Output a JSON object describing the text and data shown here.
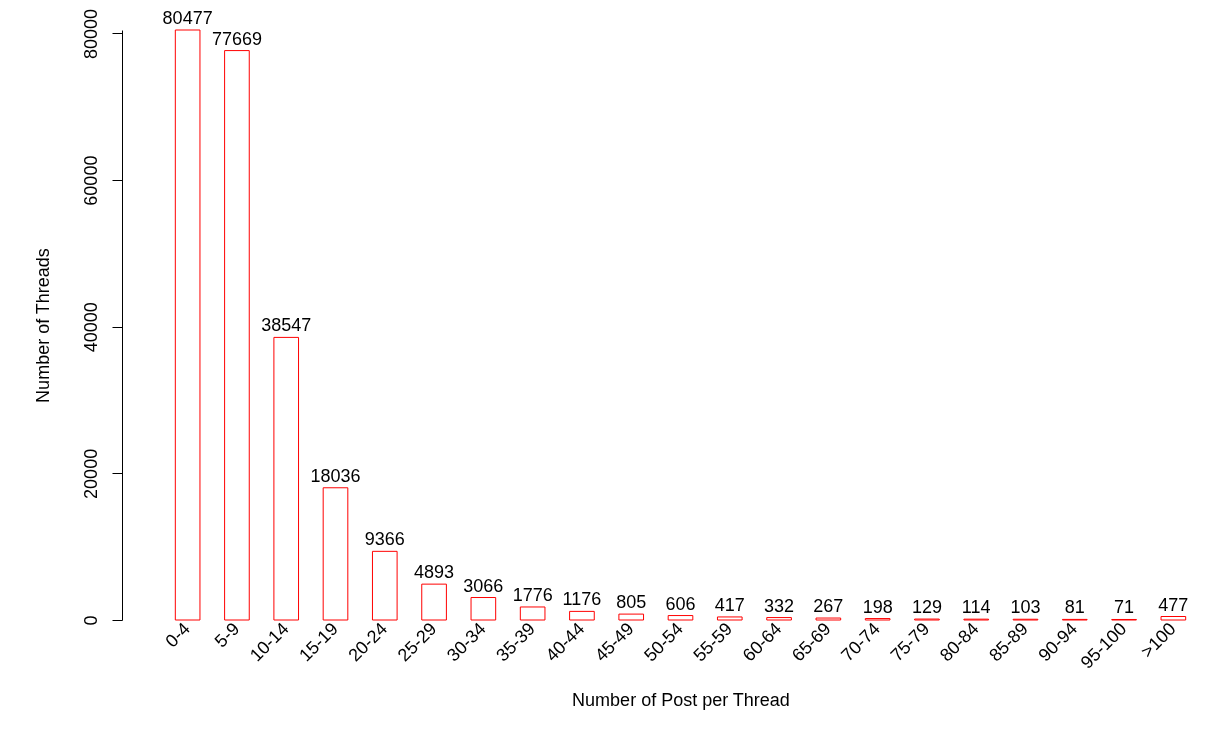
{
  "chart_data": {
    "type": "bar",
    "xlabel": "Number of Post per Thread",
    "ylabel": "Number of Threads",
    "categories": [
      "0-4",
      "5-9",
      "10-14",
      "15-19",
      "20-24",
      "25-29",
      "30-34",
      "35-39",
      "40-44",
      "45-49",
      "50-54",
      "55-59",
      "60-64",
      "65-69",
      "70-74",
      "75-79",
      "80-84",
      "85-89",
      "90-94",
      "95-100",
      ">100"
    ],
    "values": [
      80477,
      77669,
      38547,
      18036,
      9366,
      4893,
      3066,
      1776,
      1176,
      805,
      606,
      417,
      332,
      267,
      198,
      129,
      114,
      103,
      81,
      71,
      477
    ],
    "color": "#ff0000",
    "ylim": [
      0,
      80477
    ],
    "yticks": [
      0,
      20000,
      40000,
      60000,
      80000
    ],
    "grid": false,
    "data_labels": true
  }
}
